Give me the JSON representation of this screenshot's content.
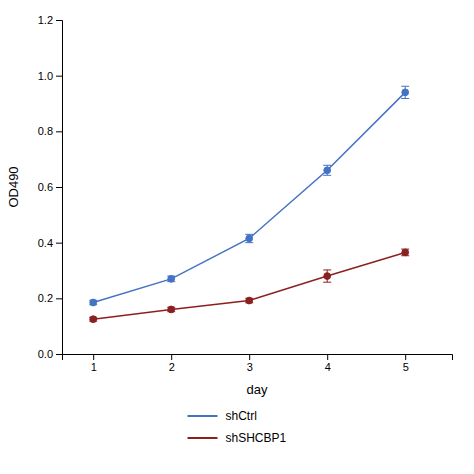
{
  "chart_data": {
    "type": "line",
    "x": [
      1,
      2,
      3,
      4,
      5
    ],
    "series": [
      {
        "name": "shCtrl",
        "color": "#4472C4",
        "marker": "circle",
        "values": [
          0.185,
          0.27,
          0.415,
          0.66,
          0.94
        ],
        "errors": [
          0.008,
          0.01,
          0.015,
          0.018,
          0.022
        ]
      },
      {
        "name": "shSHCBP1",
        "color": "#8B2020",
        "marker": "circle",
        "values": [
          0.125,
          0.16,
          0.192,
          0.28,
          0.365
        ],
        "errors": [
          0.007,
          0.008,
          0.008,
          0.022,
          0.012
        ]
      }
    ],
    "xlabel": "day",
    "ylabel": "OD490",
    "xlim": [
      0.6,
      5.6
    ],
    "xticks": [
      1,
      2,
      3,
      4,
      5
    ],
    "ylim": [
      0,
      1.2
    ],
    "yticks": [
      {
        "value": 0,
        "label": "0.0"
      },
      0.2,
      0.4,
      0.6,
      0.8,
      {
        "value": 1.0,
        "label": "1.0"
      },
      1.2
    ],
    "grid": false,
    "legend": "bottom"
  }
}
